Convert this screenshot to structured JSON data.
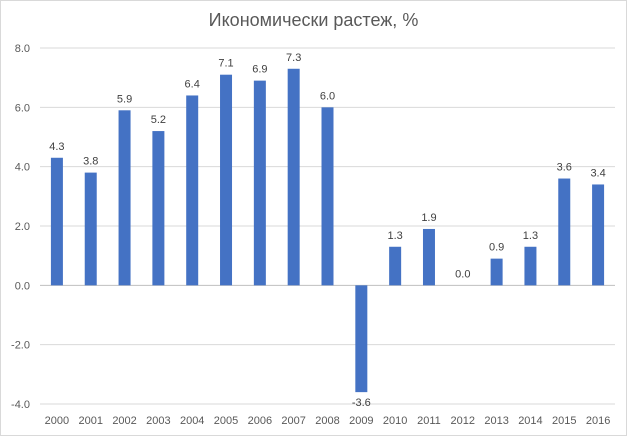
{
  "chart_data": {
    "type": "bar",
    "title": "Икономически растеж, %",
    "xlabel": "",
    "ylabel": "",
    "categories": [
      "2000",
      "2001",
      "2002",
      "2003",
      "2004",
      "2005",
      "2006",
      "2007",
      "2008",
      "2009",
      "2010",
      "2011",
      "2012",
      "2013",
      "2014",
      "2015",
      "2016"
    ],
    "values": [
      4.3,
      3.8,
      5.9,
      5.2,
      6.4,
      7.1,
      6.9,
      7.3,
      6.0,
      -3.6,
      1.3,
      1.9,
      0.0,
      0.9,
      1.3,
      3.6,
      3.4
    ],
    "data_labels": [
      "4.3",
      "3.8",
      "5.9",
      "5.2",
      "6.4",
      "7.1",
      "6.9",
      "7.3",
      "6.0",
      "-3.6",
      "1.3",
      "1.9",
      "0.0",
      "0.9",
      "1.3",
      "3.6",
      "3.4"
    ],
    "ylim": [
      -4.0,
      8.0
    ],
    "yticks": [
      -4.0,
      -2.0,
      0.0,
      2.0,
      4.0,
      6.0,
      8.0
    ],
    "ytick_labels": [
      "-4.0",
      "-2.0",
      "0.0",
      "2.0",
      "4.0",
      "6.0",
      "8.0"
    ],
    "grid": true,
    "bar_color": "#4472c4"
  }
}
